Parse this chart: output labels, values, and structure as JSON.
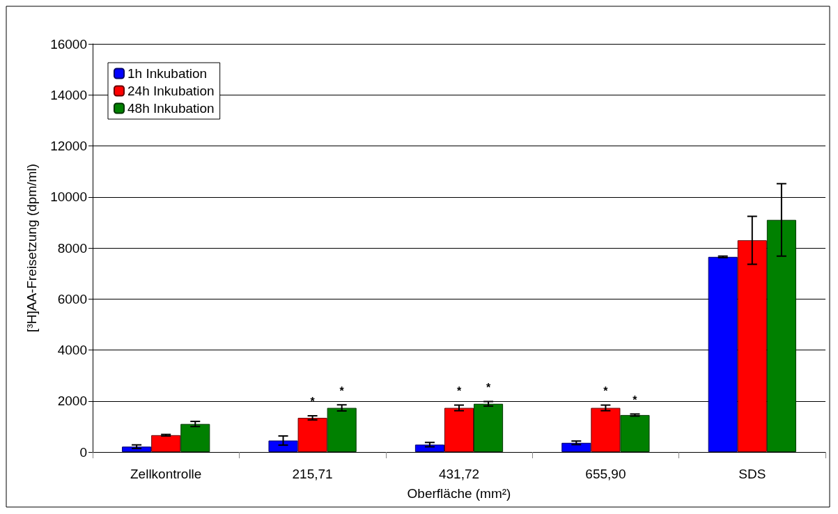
{
  "chart_data": {
    "type": "bar",
    "xlabel": "Oberfläche (mm²)",
    "ylabel": "[³H]AA-Freisetzung (dpm/ml)",
    "categories": [
      "Zellkontrolle",
      "215,71",
      "431,72",
      "655,90",
      "SDS"
    ],
    "series": [
      {
        "name": "1h Inkubation",
        "color": "#0000ff",
        "values": [
          210,
          450,
          290,
          360,
          7650
        ],
        "errors": [
          70,
          180,
          85,
          70,
          30
        ]
      },
      {
        "name": "24h Inkubation",
        "color": "#ff0000",
        "values": [
          660,
          1340,
          1730,
          1730,
          8300
        ],
        "errors": [
          30,
          80,
          110,
          110,
          940
        ],
        "value_labels": [
          null,
          "*",
          "*",
          "*",
          null
        ]
      },
      {
        "name": "48h Inkubation",
        "color": "#008000",
        "values": [
          1100,
          1730,
          1890,
          1450,
          9100
        ],
        "errors": [
          100,
          120,
          90,
          40,
          1420
        ],
        "value_labels": [
          null,
          "*",
          "*",
          "*",
          null
        ]
      }
    ],
    "ylim": [
      0,
      16000
    ],
    "yticks": [
      0,
      2000,
      4000,
      6000,
      8000,
      10000,
      12000,
      14000,
      16000
    ],
    "grid": "y",
    "legend": "top left"
  }
}
